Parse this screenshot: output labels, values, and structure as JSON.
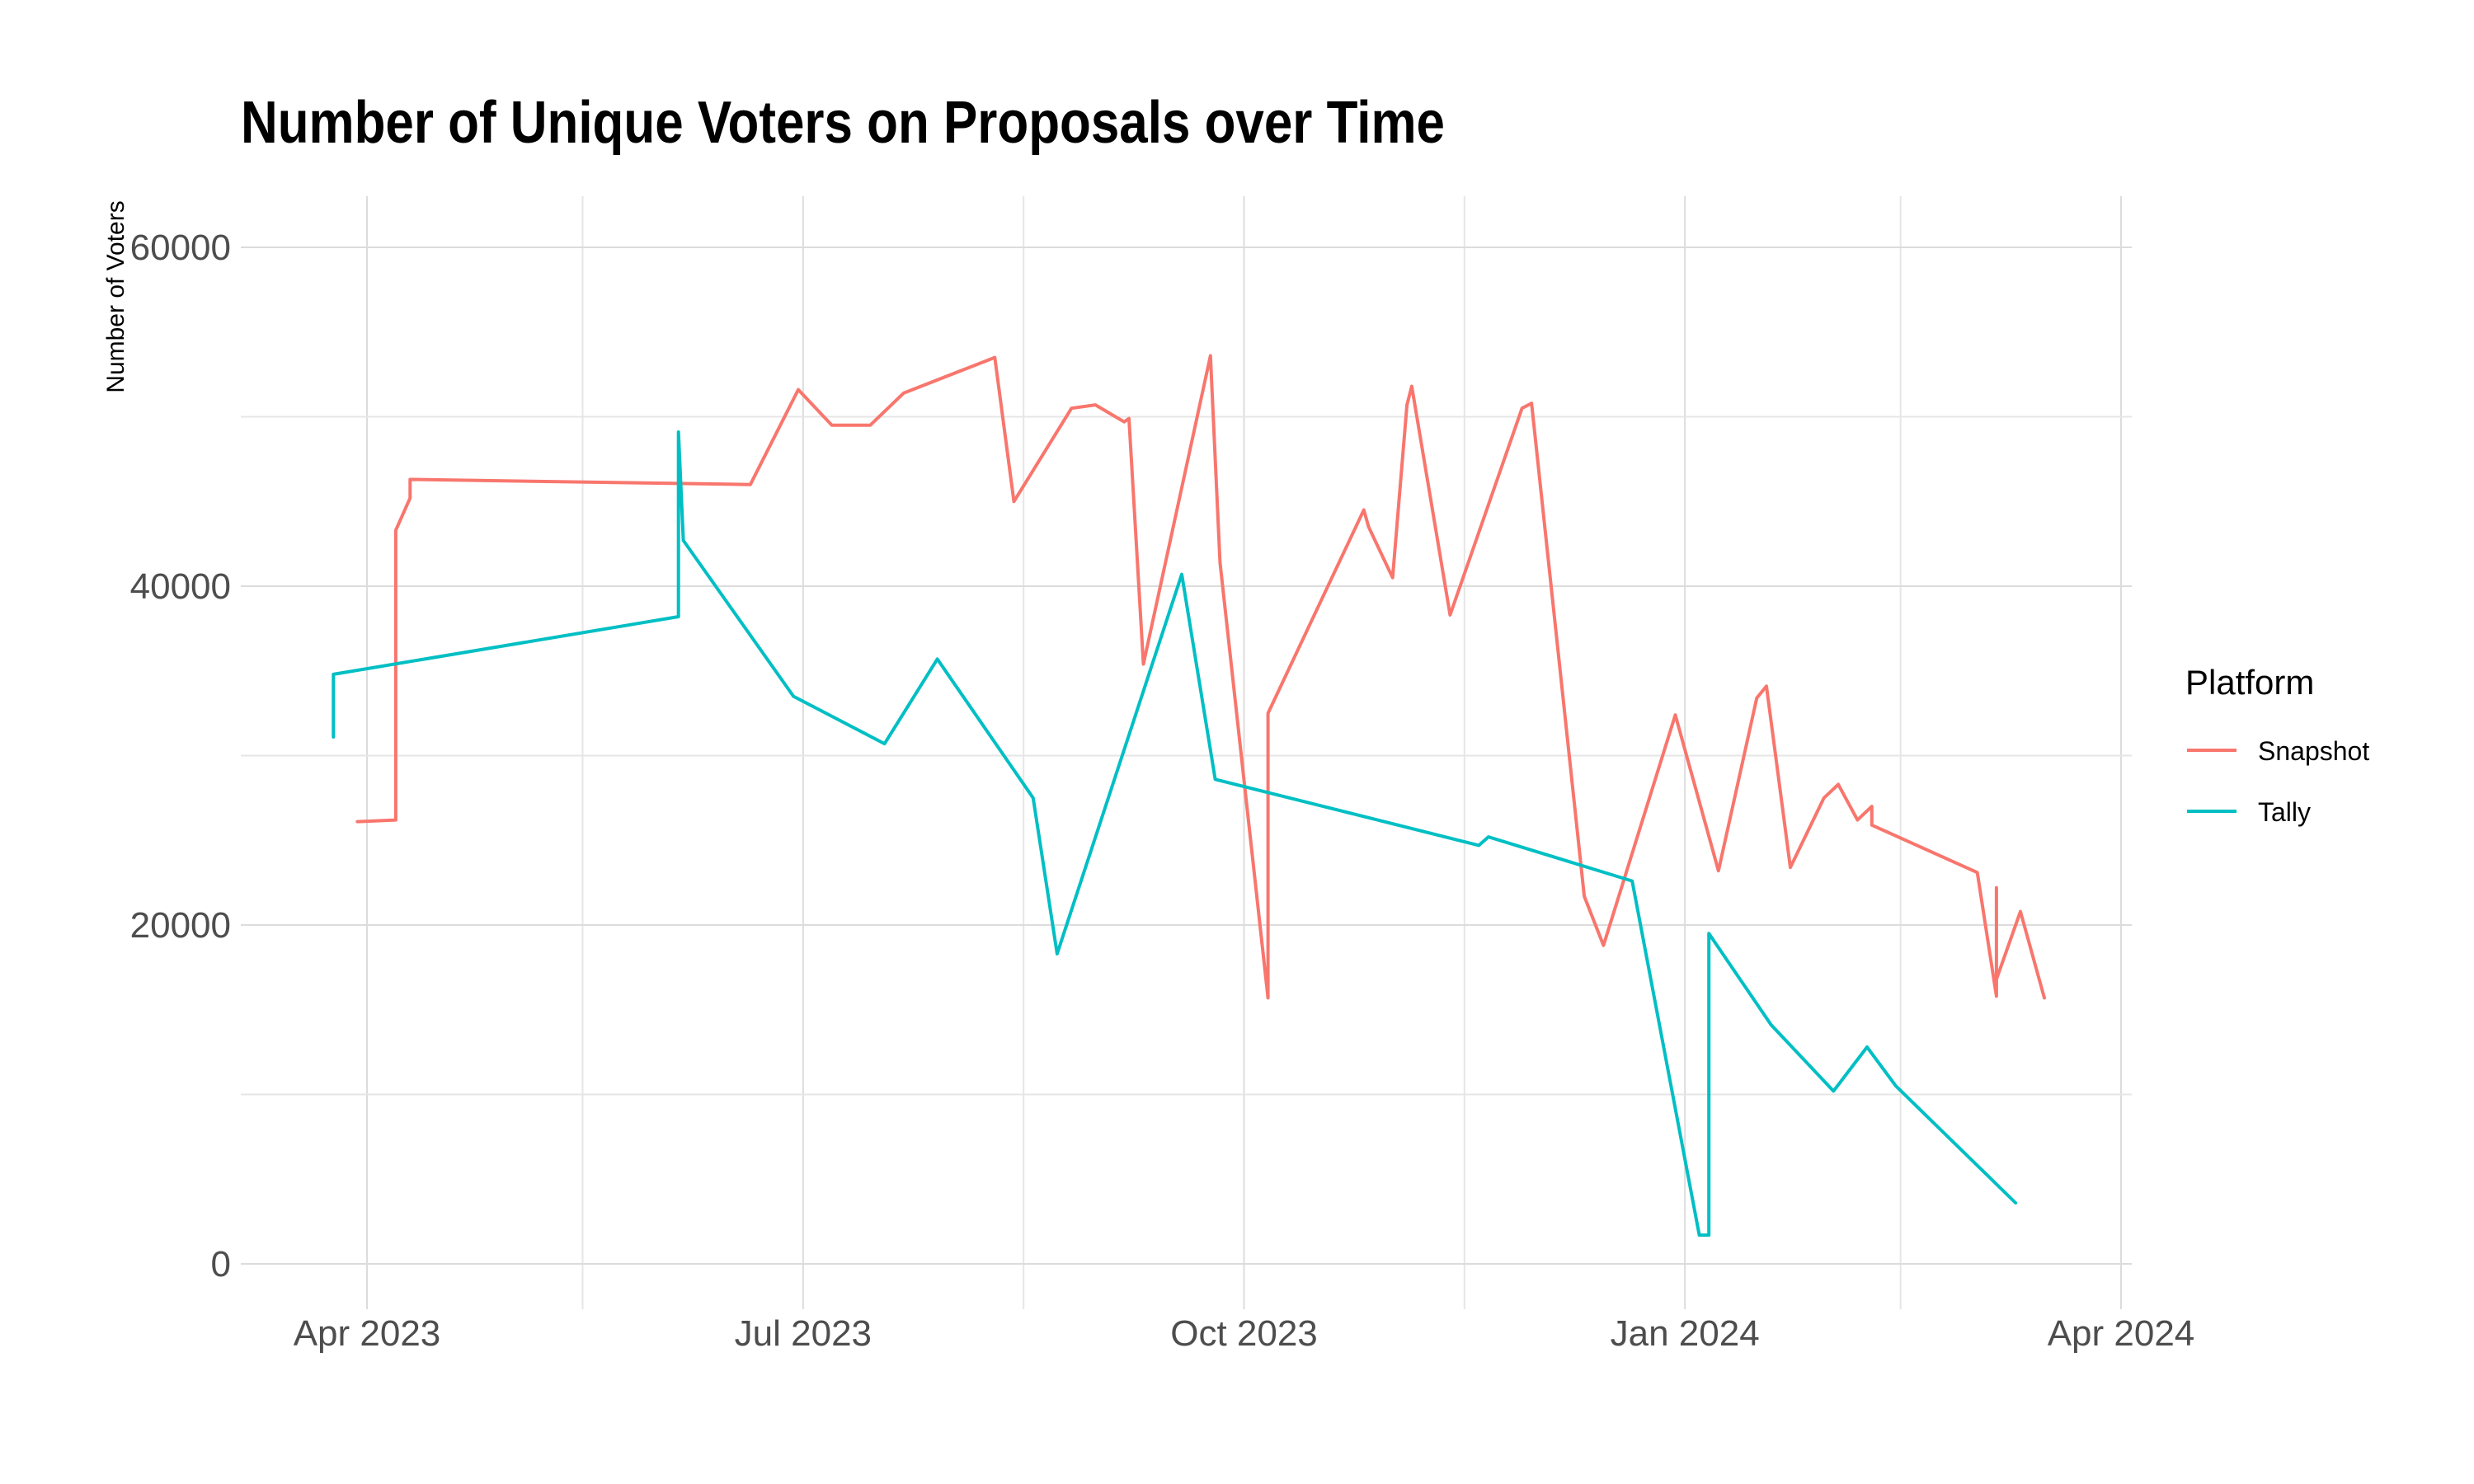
{
  "chart_data": {
    "type": "line",
    "title": "Number of Unique Voters on Proposals over Time",
    "xlabel": "",
    "ylabel": "Number of Voters",
    "xlim": [
      "2023-03-01",
      "2024-04-01"
    ],
    "ylim": [
      -3000,
      63000
    ],
    "x_ticks": [
      {
        "date": "2023-04-01",
        "label": "Apr 2023"
      },
      {
        "date": "2023-07-01",
        "label": "Jul 2023"
      },
      {
        "date": "2023-10-01",
        "label": "Oct 2023"
      },
      {
        "date": "2024-01-01",
        "label": "Jan 2024"
      },
      {
        "date": "2024-04-01",
        "label": "Apr 2024"
      }
    ],
    "x_minor_ticks": [
      "2023-05-16",
      "2023-08-16",
      "2023-11-16",
      "2024-02-15"
    ],
    "y_ticks": [
      0,
      20000,
      40000,
      60000
    ],
    "y_minor_ticks": [
      10000,
      30000,
      50000
    ],
    "grid": true,
    "legend": {
      "title": "Platform",
      "position": "right"
    },
    "series": [
      {
        "name": "Snapshot",
        "color": "#F8766D",
        "points": [
          [
            "2023-03-30",
            26100
          ],
          [
            "2023-04-07",
            26200
          ],
          [
            "2023-04-07",
            43300
          ],
          [
            "2023-04-10",
            45200
          ],
          [
            "2023-04-10",
            46300
          ],
          [
            "2023-06-20",
            46000
          ],
          [
            "2023-06-30",
            51600
          ],
          [
            "2023-07-07",
            49500
          ],
          [
            "2023-07-15",
            49500
          ],
          [
            "2023-07-22",
            51400
          ],
          [
            "2023-08-10",
            53500
          ],
          [
            "2023-08-14",
            45000
          ],
          [
            "2023-08-26",
            50500
          ],
          [
            "2023-08-31",
            50700
          ],
          [
            "2023-09-06",
            49700
          ],
          [
            "2023-09-07",
            49900
          ],
          [
            "2023-09-10",
            35400
          ],
          [
            "2023-09-24",
            53600
          ],
          [
            "2023-09-26",
            41400
          ],
          [
            "2023-10-06",
            15700
          ],
          [
            "2023-10-06",
            32500
          ],
          [
            "2023-10-26",
            44500
          ],
          [
            "2023-10-27",
            43500
          ],
          [
            "2023-11-01",
            40500
          ],
          [
            "2023-11-04",
            50700
          ],
          [
            "2023-11-05",
            51800
          ],
          [
            "2023-11-13",
            38300
          ],
          [
            "2023-11-28",
            50500
          ],
          [
            "2023-11-30",
            50800
          ],
          [
            "2023-12-11",
            21700
          ],
          [
            "2023-12-15",
            18800
          ],
          [
            "2023-12-30",
            32400
          ],
          [
            "2024-01-08",
            23200
          ],
          [
            "2024-01-16",
            33400
          ],
          [
            "2024-01-18",
            34100
          ],
          [
            "2024-01-23",
            23400
          ],
          [
            "2024-01-30",
            27500
          ],
          [
            "2024-02-02",
            28300
          ],
          [
            "2024-02-06",
            26200
          ],
          [
            "2024-02-09",
            27000
          ],
          [
            "2024-02-09",
            25900
          ],
          [
            "2024-03-02",
            23100
          ],
          [
            "2024-03-06",
            15800
          ],
          [
            "2024-03-06",
            22200
          ],
          [
            "2024-03-06",
            16800
          ],
          [
            "2024-03-11",
            20800
          ],
          [
            "2024-03-16",
            15700
          ]
        ]
      },
      {
        "name": "Tally",
        "color": "#00BFC4",
        "points": [
          [
            "2023-03-25",
            31100
          ],
          [
            "2023-03-25",
            34800
          ],
          [
            "2023-06-05",
            38200
          ],
          [
            "2023-06-05",
            49100
          ],
          [
            "2023-06-06",
            42700
          ],
          [
            "2023-06-29",
            33500
          ],
          [
            "2023-07-18",
            30700
          ],
          [
            "2023-07-29",
            35700
          ],
          [
            "2023-08-18",
            27500
          ],
          [
            "2023-08-23",
            18300
          ],
          [
            "2023-09-18",
            40700
          ],
          [
            "2023-09-25",
            28600
          ],
          [
            "2023-11-19",
            24700
          ],
          [
            "2023-11-21",
            25200
          ],
          [
            "2023-12-21",
            22600
          ],
          [
            "2024-01-04",
            1700
          ],
          [
            "2024-01-06",
            1700
          ],
          [
            "2024-01-06",
            19500
          ],
          [
            "2024-01-19",
            14100
          ],
          [
            "2024-02-01",
            10200
          ],
          [
            "2024-02-08",
            12800
          ],
          [
            "2024-02-14",
            10500
          ],
          [
            "2024-03-10",
            3600
          ]
        ]
      }
    ]
  }
}
